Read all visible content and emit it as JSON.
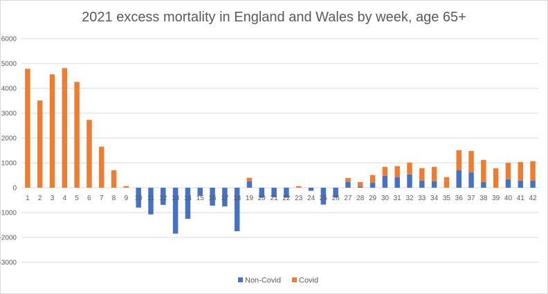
{
  "chart_data": {
    "type": "bar",
    "stacked": true,
    "title": "2021 excess mortality in England and Wales by week, age 65+",
    "xlabel": "",
    "ylabel": "",
    "ylim": [
      -3000,
      6000
    ],
    "yticks": [
      6000,
      5000,
      4000,
      3000,
      2000,
      1000,
      0,
      -1000,
      -2000,
      -3000
    ],
    "grid": true,
    "legend_position": "bottom",
    "categories": [
      "1",
      "2",
      "3",
      "4",
      "5",
      "6",
      "7",
      "8",
      "9",
      "10",
      "11",
      "12",
      "13",
      "14",
      "15",
      "16",
      "17",
      "18",
      "19",
      "20",
      "21",
      "22",
      "23",
      "24",
      "25",
      "26",
      "27",
      "28",
      "29",
      "30",
      "31",
      "32",
      "33",
      "34",
      "35",
      "36",
      "37",
      "38",
      "39",
      "40",
      "41",
      "42"
    ],
    "series": [
      {
        "name": "Non-Covid",
        "color": "#4472c4",
        "values": [
          0,
          0,
          0,
          0,
          0,
          0,
          0,
          0,
          0,
          -800,
          -1075,
          -690,
          -1850,
          -1250,
          -330,
          -720,
          -750,
          -1750,
          260,
          -400,
          -380,
          -400,
          0,
          -125,
          -680,
          -390,
          240,
          45,
          205,
          480,
          425,
          535,
          285,
          260,
          0,
          705,
          620,
          230,
          0,
          340,
          285,
          285
        ]
      },
      {
        "name": "Covid",
        "color": "#ed7d31",
        "values": [
          4790,
          3510,
          4565,
          4815,
          4260,
          2730,
          1650,
          705,
          65,
          0,
          0,
          0,
          0,
          0,
          0,
          0,
          0,
          0,
          140,
          0,
          0,
          0,
          65,
          0,
          0,
          0,
          155,
          185,
          305,
          360,
          445,
          475,
          500,
          580,
          425,
          805,
          860,
          890,
          785,
          665,
          750,
          780
        ]
      }
    ]
  }
}
